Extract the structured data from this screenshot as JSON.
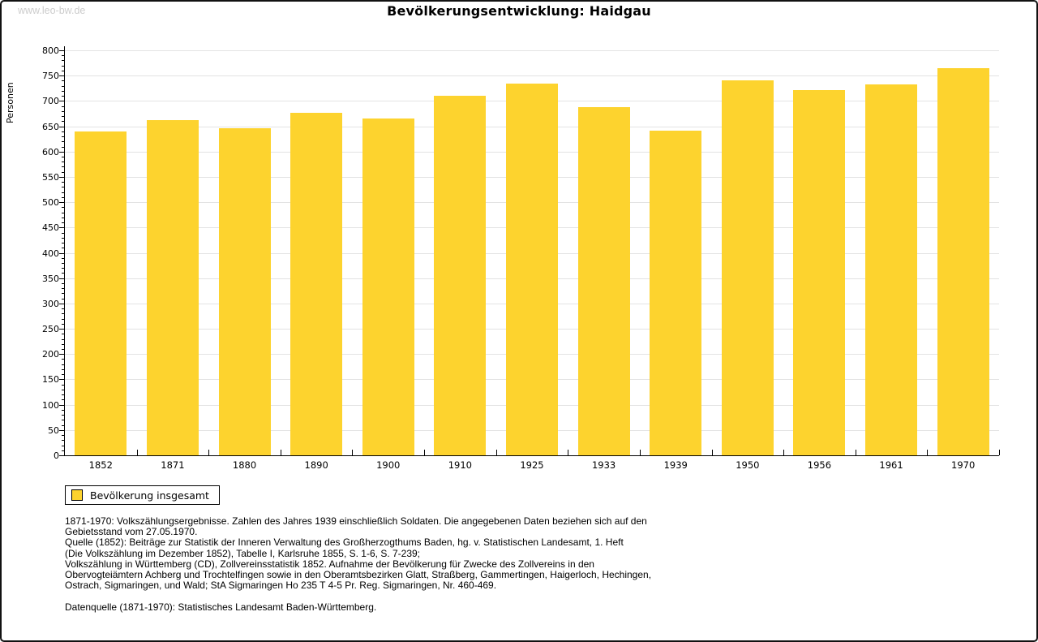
{
  "watermark": "www.leo-bw.de",
  "title": "Bevölkerungsentwicklung: Haidgau",
  "chart_data": {
    "type": "bar",
    "title": "Bevölkerungsentwicklung: Haidgau",
    "xlabel": "",
    "ylabel": "Personen",
    "ylim": [
      0,
      800
    ],
    "ytick_step": 50,
    "ytick_minor_step": 10,
    "grid": true,
    "legend_position": "bottom-left",
    "categories": [
      "1852",
      "1871",
      "1880",
      "1890",
      "1900",
      "1910",
      "1925",
      "1933",
      "1939",
      "1950",
      "1956",
      "1961",
      "1970"
    ],
    "series": [
      {
        "name": "Bevölkerung insgesamt",
        "color": "#FDD32E",
        "values": [
          640,
          662,
          646,
          677,
          665,
          710,
          734,
          687,
          642,
          740,
          721,
          733,
          765
        ]
      }
    ]
  },
  "legend": {
    "label": "Bevölkerung insgesamt",
    "swatch_color": "#FDD32E"
  },
  "notes": {
    "lines": [
      "1871-1970: Volkszählungsergebnisse. Zahlen des Jahres 1939 einschließlich Soldaten. Die angegebenen Daten beziehen sich auf den",
      "Gebietsstand vom 27.05.1970.",
      "Quelle (1852): Beiträge zur Statistik der Inneren Verwaltung des Großherzogthums Baden, hg. v. Statistischen Landesamt, 1. Heft",
      "(Die Volkszählung im Dezember 1852), Tabelle I, Karlsruhe 1855, S. 1-6, S. 7-239;",
      "Volkszählung in Württemberg (CD), Zollvereinsstatistik 1852. Aufnahme der Bevölkerung für Zwecke des Zollvereins in den",
      "Obervogteiämtern Achberg und Trochtelfingen sowie in den Oberamtsbezirken Glatt, Straßberg, Gammertingen, Haigerloch, Hechingen,",
      "Ostrach, Sigmaringen, und Wald; StA Sigmaringen Ho 235 T 4-5 Pr. Reg. Sigmaringen, Nr. 460-469.",
      "Datenquelle (1871-1970): Statistisches Landesamt Baden-Württemberg."
    ]
  },
  "colors": {
    "bar": "#FDD32E",
    "grid": "#e3e3e3",
    "axis": "#000000",
    "watermark": "#cccccc"
  }
}
